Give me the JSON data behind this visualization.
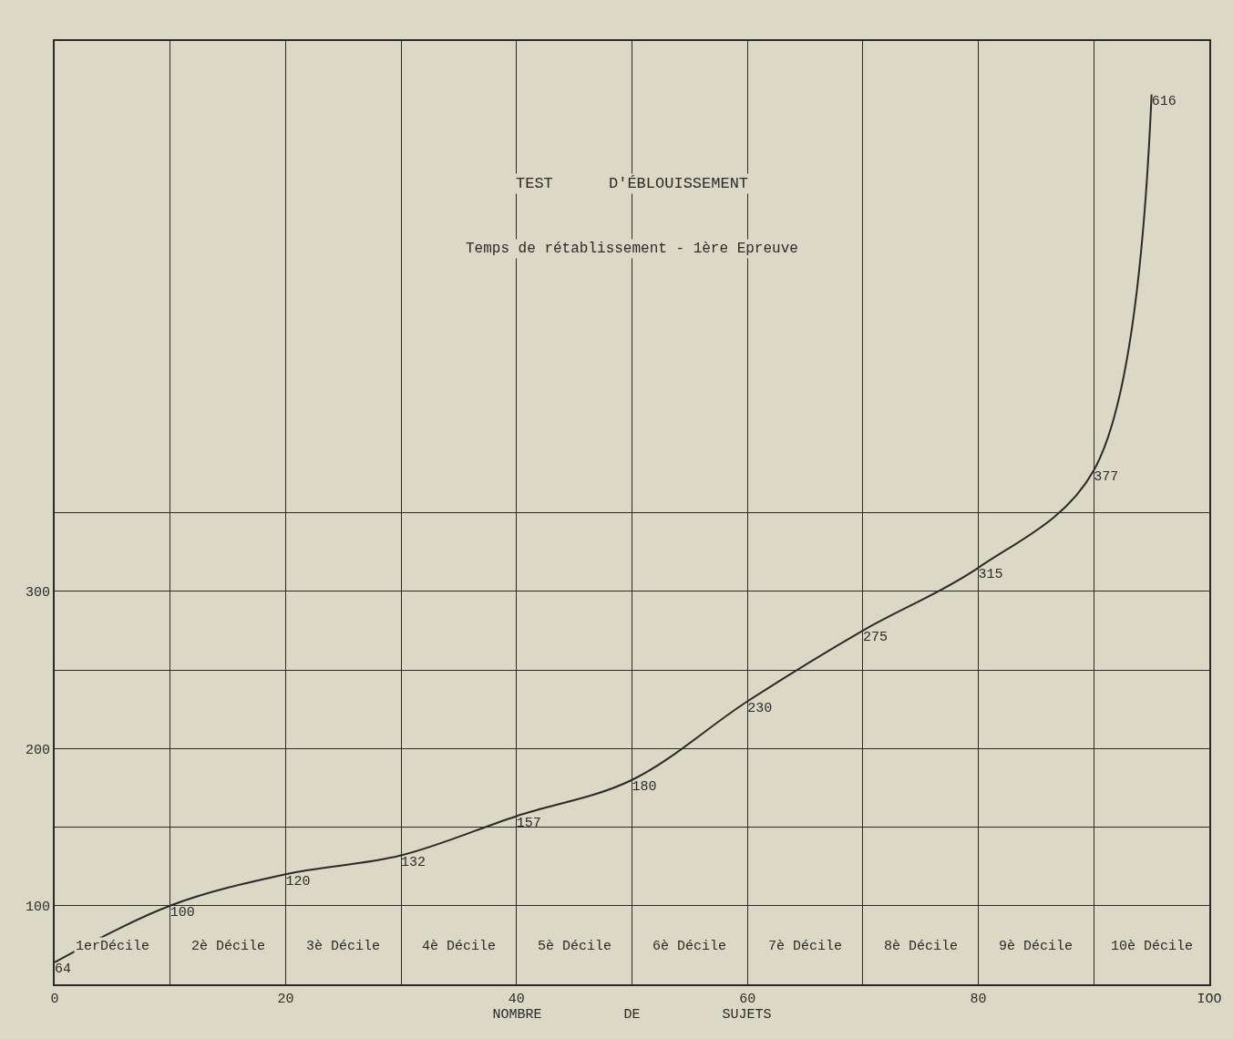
{
  "chart_data": {
    "type": "line",
    "title": "TEST      D'ÉBLOUISSEMENT",
    "subtitle": "Temps de rétablissement - 1ère Epreuve",
    "xlabel": "NOMBRE          DE          SUJETS",
    "x": [
      0,
      10,
      20,
      30,
      40,
      50,
      60,
      70,
      80,
      90,
      95
    ],
    "series": [
      {
        "color": "#2a2a2a",
        "values": [
          64,
          100,
          120,
          132,
          157,
          180,
          230,
          275,
          315,
          377,
          616
        ]
      }
    ],
    "data_labels": true,
    "marker": "none",
    "line_style": "solid",
    "xlim": [
      0,
      100
    ],
    "ylim": [
      50,
      650
    ],
    "xticks": [
      0,
      {
        "value": 10,
        "label": null
      },
      20,
      {
        "value": 30,
        "label": null
      },
      40,
      {
        "value": 50,
        "label": null
      },
      60,
      {
        "value": 70,
        "label": null
      },
      80,
      {
        "value": 90,
        "label": null
      },
      {
        "value": 100,
        "label": "IOO"
      }
    ],
    "yticks": [
      100,
      {
        "value": 150,
        "label": null
      },
      200,
      {
        "value": 250,
        "label": null
      },
      300,
      {
        "value": 350,
        "label": null
      }
    ],
    "grid": true,
    "annotations": [
      "1erDécile",
      "2è Décile",
      "3è Décile",
      "4è Décile",
      "5è Décile",
      "6è Décile",
      "7è Décile",
      "8è Décile",
      "9è Décile",
      "10è Décile"
    ]
  }
}
